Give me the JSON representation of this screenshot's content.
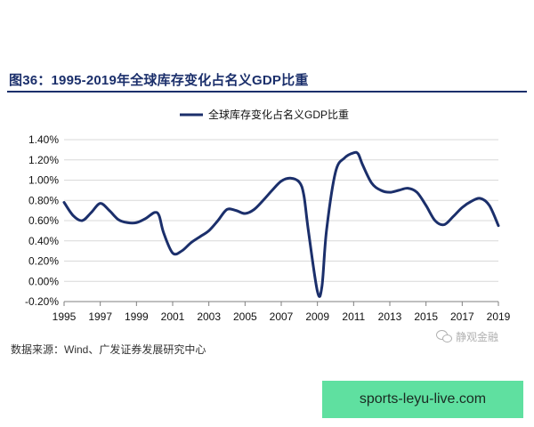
{
  "figure": {
    "title": "图36：1995-2019年全球库存变化占名义GDP比重",
    "source": "数据来源：Wind、广发证券发展研究中心",
    "watermark": "静观金融",
    "banner": "sports-leyu-live.com"
  },
  "colors": {
    "line": "#1b2f6b",
    "grid": "#d9d9d9",
    "axis": "#7f7f7f",
    "banner": "#5fe0a0"
  },
  "chart_data": {
    "type": "line",
    "title": "",
    "xlabel": "",
    "ylabel": "",
    "legend_position": "top-center",
    "grid": true,
    "xlim": [
      1995,
      2019
    ],
    "ylim": [
      -0.2,
      1.4
    ],
    "yticks": [
      -0.2,
      0.0,
      0.2,
      0.4,
      0.6,
      0.8,
      1.0,
      1.2,
      1.4
    ],
    "ytick_labels": [
      "-0.20%",
      "0.00%",
      "0.20%",
      "0.40%",
      "0.60%",
      "0.80%",
      "1.00%",
      "1.20%",
      "1.40%"
    ],
    "xticks": [
      1995,
      1997,
      1999,
      2001,
      2003,
      2005,
      2007,
      2009,
      2011,
      2013,
      2015,
      2017,
      2019
    ],
    "xtick_labels": [
      "1995",
      "1997",
      "1999",
      "2001",
      "2003",
      "2005",
      "2007",
      "2009",
      "2011",
      "2013",
      "2015",
      "2017",
      "2019"
    ],
    "series": [
      {
        "name": "全球库存变化占名义GDP比重",
        "x": [
          1995,
          1995.5,
          1996,
          1996.5,
          1997,
          1997.5,
          1998,
          1998.5,
          1999,
          1999.5,
          2000,
          2000.25,
          2000.5,
          2001,
          2001.5,
          2002,
          2002.5,
          2003,
          2003.5,
          2004,
          2004.5,
          2005,
          2005.5,
          2006,
          2006.5,
          2007,
          2007.5,
          2008,
          2008.25,
          2008.5,
          2009,
          2009.25,
          2009.5,
          2010,
          2010.5,
          2011,
          2011.25,
          2011.5,
          2012,
          2012.5,
          2013,
          2013.5,
          2014,
          2014.5,
          2015,
          2015.5,
          2016,
          2016.5,
          2017,
          2017.5,
          2018,
          2018.5,
          2019
        ],
        "values": [
          0.78,
          0.65,
          0.6,
          0.68,
          0.77,
          0.7,
          0.61,
          0.58,
          0.58,
          0.62,
          0.68,
          0.65,
          0.48,
          0.28,
          0.3,
          0.38,
          0.44,
          0.5,
          0.6,
          0.71,
          0.7,
          0.67,
          0.71,
          0.8,
          0.9,
          0.99,
          1.02,
          0.98,
          0.85,
          0.5,
          -0.1,
          -0.05,
          0.5,
          1.08,
          1.22,
          1.27,
          1.26,
          1.15,
          0.97,
          0.9,
          0.88,
          0.9,
          0.92,
          0.88,
          0.75,
          0.6,
          0.56,
          0.64,
          0.73,
          0.79,
          0.82,
          0.75,
          0.55
        ]
      }
    ]
  }
}
